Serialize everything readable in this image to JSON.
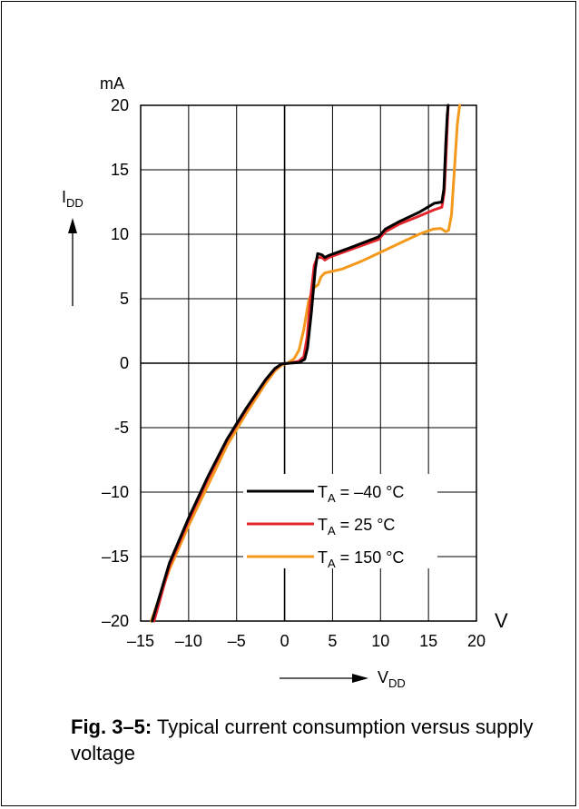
{
  "caption": {
    "figure_label": "Fig. 3–5:",
    "text": "Typical current consumption versus supply voltage"
  },
  "chart_data": {
    "type": "line",
    "title": "",
    "y_unit": "mA",
    "x_unit": "V",
    "ylabel_main": "I",
    "ylabel_sub": "DD",
    "xlabel_main": "V",
    "xlabel_sub": "DD",
    "xlim": [
      -15,
      20
    ],
    "ylim": [
      -20,
      20
    ],
    "x_ticks": [
      -15,
      -10,
      -5,
      0,
      5,
      10,
      15,
      20
    ],
    "x_tick_labels": [
      "–15",
      "–10",
      "–5",
      "0",
      "5",
      "10",
      "15",
      "20"
    ],
    "y_ticks": [
      20,
      15,
      10,
      5,
      0,
      -5,
      -10,
      -15,
      -20
    ],
    "y_tick_labels": [
      "20",
      "15",
      "10",
      "5",
      "0",
      "-5",
      "–10",
      "–15",
      "–20"
    ],
    "grid": true,
    "legend_position": "bottom-right",
    "series": [
      {
        "name": "T",
        "name_sub": "A",
        "name_suffix": " = –40 °C",
        "color": "#000000",
        "points": [
          [
            -13.8,
            -20
          ],
          [
            -12,
            -15.5
          ],
          [
            -10,
            -12
          ],
          [
            -8,
            -8.8
          ],
          [
            -6,
            -5.9
          ],
          [
            -4,
            -3.5
          ],
          [
            -2,
            -1.3
          ],
          [
            -1,
            -0.4
          ],
          [
            -0.3,
            -0.05
          ],
          [
            0.5,
            0
          ],
          [
            1.5,
            0.05
          ],
          [
            2.1,
            0.3
          ],
          [
            2.4,
            1.2
          ],
          [
            2.8,
            4
          ],
          [
            3.2,
            7.3
          ],
          [
            3.45,
            8.5
          ],
          [
            3.9,
            8.4
          ],
          [
            4.2,
            8.2
          ],
          [
            4.6,
            8.35
          ],
          [
            7,
            9
          ],
          [
            9.8,
            9.8
          ],
          [
            10.5,
            10.4
          ],
          [
            12,
            11
          ],
          [
            14,
            11.7
          ],
          [
            15.6,
            12.4
          ],
          [
            16.4,
            12.5
          ],
          [
            16.6,
            13.5
          ],
          [
            16.8,
            17
          ],
          [
            16.95,
            19.2
          ],
          [
            17.05,
            20
          ]
        ]
      },
      {
        "name": "T",
        "name_sub": "A",
        "name_suffix": " = 25 °C",
        "color": "#e3262c",
        "points": [
          [
            -13.6,
            -20
          ],
          [
            -12,
            -15.7
          ],
          [
            -10,
            -12.2
          ],
          [
            -8,
            -9
          ],
          [
            -6,
            -6
          ],
          [
            -4,
            -3.6
          ],
          [
            -2,
            -1.35
          ],
          [
            -1,
            -0.45
          ],
          [
            -0.3,
            -0.05
          ],
          [
            0.5,
            0
          ],
          [
            1.5,
            0.15
          ],
          [
            2,
            0.5
          ],
          [
            2.35,
            2
          ],
          [
            2.7,
            5
          ],
          [
            3.1,
            7.6
          ],
          [
            3.4,
            8.2
          ],
          [
            3.9,
            8.2
          ],
          [
            4.2,
            8
          ],
          [
            4.6,
            8.2
          ],
          [
            7,
            8.85
          ],
          [
            9.8,
            9.6
          ],
          [
            10.5,
            10.2
          ],
          [
            12,
            10.8
          ],
          [
            14,
            11.4
          ],
          [
            15.6,
            11.9
          ],
          [
            16.4,
            12.1
          ],
          [
            16.65,
            13.3
          ],
          [
            16.85,
            16.5
          ],
          [
            17.05,
            20
          ]
        ]
      },
      {
        "name": "T",
        "name_sub": "A",
        "name_suffix": " = 150 °C",
        "color": "#f39a1d",
        "points": [
          [
            -13.9,
            -20
          ],
          [
            -12,
            -16
          ],
          [
            -10,
            -12.6
          ],
          [
            -8,
            -9.5
          ],
          [
            -6,
            -6.4
          ],
          [
            -4,
            -3.9
          ],
          [
            -2,
            -1.6
          ],
          [
            -1,
            -0.6
          ],
          [
            -0.3,
            -0.15
          ],
          [
            0.3,
            0
          ],
          [
            1,
            0.35
          ],
          [
            1.5,
            1
          ],
          [
            2,
            2.6
          ],
          [
            2.5,
            4.8
          ],
          [
            3,
            5.8
          ],
          [
            3.5,
            6.1
          ],
          [
            3.8,
            6.7
          ],
          [
            4.2,
            7
          ],
          [
            6,
            7.3
          ],
          [
            8,
            7.9
          ],
          [
            10,
            8.6
          ],
          [
            12,
            9.3
          ],
          [
            14,
            10
          ],
          [
            15.5,
            10.4
          ],
          [
            16.3,
            10.45
          ],
          [
            16.8,
            10.2
          ],
          [
            17.1,
            10.3
          ],
          [
            17.4,
            11.5
          ],
          [
            17.7,
            15
          ],
          [
            18,
            18.5
          ],
          [
            18.25,
            20
          ]
        ]
      }
    ]
  }
}
